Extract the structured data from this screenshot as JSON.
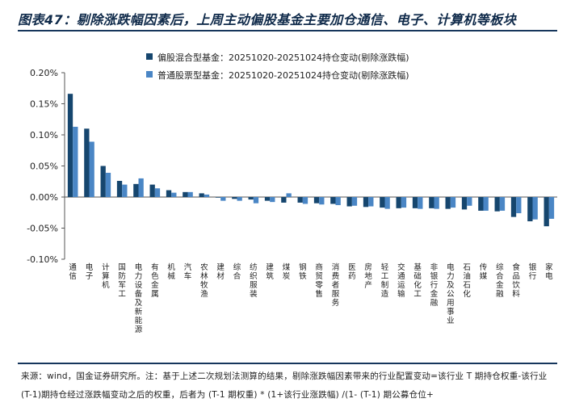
{
  "title": "图表47：剔除涨跌幅因素后，上周主动偏股基金主要加仓通信、电子、计算机等板块",
  "source": "来源：wind，国金证券研究所。注：基于上述二次规划法测算的结果，剔除涨跌幅因素带来的行业配置变动=该行业 T 期持仓权重-该行业(T-1)期持仓经过涨跌幅变动之后的权重，后者为 (T-1 期权重) * (1+该行业涨跌幅) /(1- (T-1) 期公募仓位+",
  "colors": {
    "series1": "#16466e",
    "series2": "#4a86c5"
  },
  "chart_data": {
    "type": "bar",
    "categories": [
      "通信",
      "电子",
      "计算机",
      "国防军工",
      "电力设备及新能源",
      "有色金属",
      "机械",
      "汽车",
      "农林牧渔",
      "建材",
      "综合",
      "纺织服装",
      "建筑",
      "煤炭",
      "钢铁",
      "商贸零售",
      "消费者服务",
      "医药",
      "房地产",
      "轻工制造",
      "交通运输",
      "基础化工",
      "非银行金融",
      "电力及公用事业",
      "石油石化",
      "传媒",
      "综合金融",
      "食品饮料",
      "银行",
      "家电"
    ],
    "series": [
      {
        "name": "偏股混合型基金：20251020-20251024持仓变动(剔除涨跌幅)",
        "values": [
          0.166,
          0.11,
          0.05,
          0.026,
          0.021,
          0.02,
          0.011,
          0.008,
          0.006,
          -0.001,
          -0.003,
          -0.004,
          -0.006,
          -0.009,
          -0.009,
          -0.01,
          -0.011,
          -0.015,
          -0.016,
          -0.017,
          -0.018,
          -0.018,
          -0.018,
          -0.019,
          -0.02,
          -0.022,
          -0.023,
          -0.032,
          -0.039,
          -0.047
        ]
      },
      {
        "name": "普通股票型基金：20251020-20251024持仓变动(剔除涨跌幅)",
        "values": [
          0.113,
          0.089,
          0.039,
          0.02,
          0.03,
          0.014,
          0.007,
          0.008,
          0.004,
          -0.006,
          -0.006,
          -0.01,
          -0.008,
          0.006,
          -0.011,
          -0.012,
          -0.013,
          -0.014,
          -0.015,
          -0.019,
          -0.017,
          -0.019,
          -0.019,
          -0.017,
          -0.014,
          -0.022,
          -0.022,
          -0.026,
          -0.036,
          -0.035
        ]
      }
    ],
    "y_ticks": [
      "0.20%",
      "0.15%",
      "0.10%",
      "0.05%",
      "0.00%",
      "-0.05%",
      "-0.10%"
    ],
    "ylim": [
      -0.1,
      0.2
    ],
    "legend_position": "top"
  }
}
